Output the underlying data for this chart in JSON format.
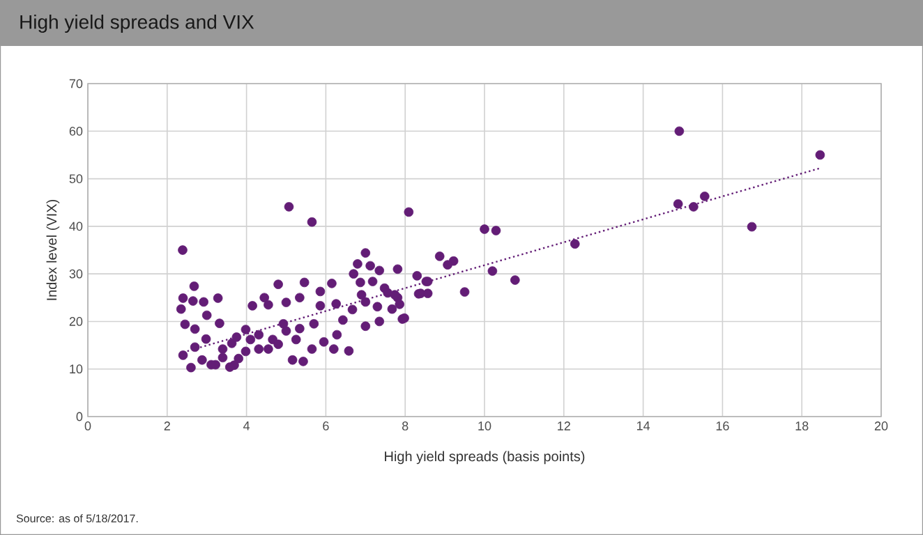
{
  "chart_data": {
    "type": "scatter",
    "title": "High yield spreads and VIX",
    "xlabel": "High yield spreads (basis points)",
    "ylabel": "Index level (VIX)",
    "xlim": [
      0,
      20
    ],
    "xticks": [
      0,
      2,
      4,
      6,
      8,
      10,
      12,
      14,
      16,
      18,
      20
    ],
    "ylim": [
      0,
      70
    ],
    "yticks": [
      0,
      10,
      20,
      30,
      40,
      50,
      60,
      70
    ],
    "grid": true,
    "marker": "circle",
    "series": [
      {
        "color": "#631d76",
        "x": [
          2.39,
          2.4,
          2.35,
          2.45,
          2.4,
          2.68,
          2.65,
          2.92,
          3.28,
          3.32,
          3.0,
          2.7,
          2.6,
          2.7,
          2.98,
          3.11,
          3.4,
          3.69,
          3.63,
          3.98,
          4.15,
          4.45,
          4.8,
          5.07,
          5.65,
          5.46,
          5.16,
          5.43,
          4.93,
          4.55,
          4.31,
          4.66,
          5.25,
          5.65,
          5.95,
          6.28,
          6.58,
          5.86,
          6.15,
          5.86,
          6.26,
          6.43,
          6.7,
          6.8,
          7.0,
          7.12,
          7.35,
          6.87,
          7.18,
          7.48,
          7.0,
          7.3,
          7.0,
          7.35,
          7.67,
          7.81,
          7.93,
          8.09,
          8.3,
          8.53,
          8.34,
          8.87,
          9.22,
          9.07,
          9.5,
          10.0,
          10.2,
          6.67,
          4.55,
          5.0,
          5.34,
          5.7,
          5.34,
          5.0,
          4.8,
          4.31,
          3.98,
          3.8,
          3.4,
          3.22,
          2.88,
          3.58,
          4.1,
          3.75,
          6.2,
          6.9,
          7.81,
          7.56,
          7.74,
          7.86,
          7.98,
          8.39,
          8.57,
          8.57,
          10.29,
          10.77,
          12.28,
          14.91,
          14.88,
          15.27,
          15.55,
          16.74,
          18.46
        ],
        "values": [
          35.0,
          24.9,
          22.6,
          19.4,
          12.9,
          27.4,
          24.3,
          24.1,
          24.9,
          19.6,
          21.3,
          18.4,
          10.3,
          14.6,
          16.3,
          10.9,
          12.4,
          10.8,
          15.4,
          18.3,
          23.3,
          25.0,
          27.8,
          44.1,
          40.9,
          28.2,
          11.9,
          11.6,
          19.5,
          14.2,
          17.2,
          16.2,
          16.2,
          14.2,
          15.7,
          17.2,
          13.8,
          26.3,
          28.0,
          23.3,
          23.7,
          20.3,
          30.0,
          32.1,
          34.4,
          31.7,
          30.7,
          28.2,
          28.4,
          27.0,
          24.1,
          23.1,
          19.0,
          20.0,
          22.6,
          31.0,
          20.5,
          43.0,
          29.6,
          28.4,
          25.8,
          33.7,
          32.7,
          31.9,
          26.2,
          39.4,
          30.6,
          22.5,
          23.5,
          24.0,
          25.0,
          19.5,
          18.5,
          18.0,
          15.2,
          14.2,
          13.7,
          12.2,
          14.2,
          10.9,
          11.9,
          10.4,
          16.2,
          16.7,
          14.2,
          25.6,
          25.0,
          26.0,
          25.6,
          23.6,
          20.7,
          25.9,
          28.4,
          25.9,
          39.1,
          28.7,
          36.3,
          60.0,
          44.7,
          44.1,
          46.3,
          39.9,
          55.0
        ]
      },
      {
        "type": "line",
        "line_style": "dotted",
        "marker": "none",
        "color": "#631d76",
        "x": [
          2.4,
          18.45
        ],
        "values": [
          13.5,
          52.2
        ]
      }
    ],
    "annotations": [
      "Source: as of 5/18/2017."
    ]
  }
}
